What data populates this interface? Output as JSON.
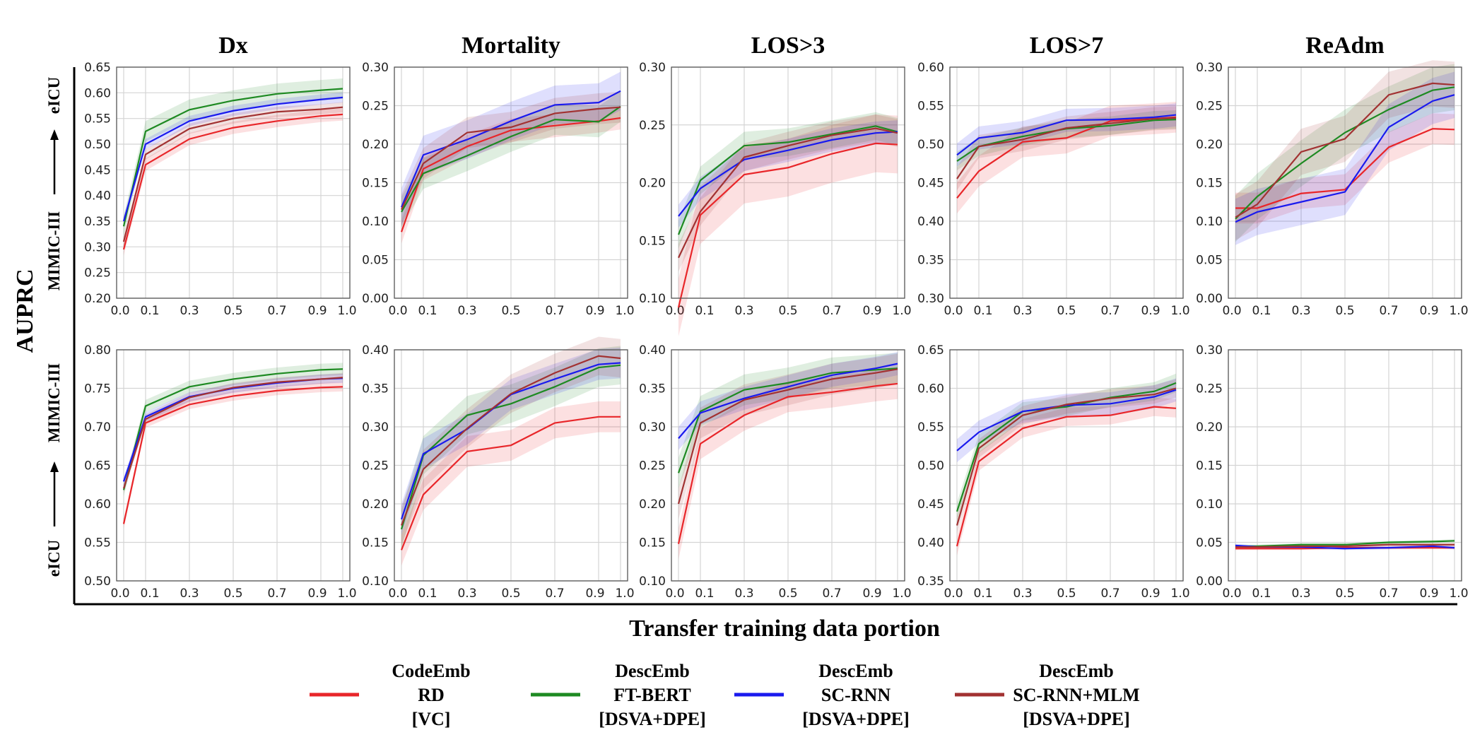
{
  "figure": {
    "y_axis_label": "AUPRC",
    "x_axis_label": "Transfer training data portion",
    "row_labels": [
      {
        "from": "MIMIC-III",
        "to": "eICU"
      },
      {
        "from": "eICU",
        "to": "MIMIC-III"
      }
    ],
    "colors": {
      "red": "#e8262a",
      "green": "#1e8a22",
      "blue": "#1a1aee",
      "brown": "#a23232"
    }
  },
  "legend": [
    {
      "key": "red",
      "lines": [
        "CodeEmb",
        "RD",
        "[VC]"
      ]
    },
    {
      "key": "green",
      "lines": [
        "DescEmb",
        "FT-BERT",
        "[DSVA+DPE]"
      ]
    },
    {
      "key": "blue",
      "lines": [
        "DescEmb",
        "SC-RNN",
        "[DSVA+DPE]"
      ]
    },
    {
      "key": "brown",
      "lines": [
        "DescEmb",
        "SC-RNN+MLM",
        "[DSVA+DPE]"
      ]
    }
  ],
  "chart_data": [
    {
      "type": "line",
      "title": "Dx",
      "row": "MIMIC-III → eICU",
      "x": [
        0.0,
        0.1,
        0.3,
        0.5,
        0.7,
        0.9,
        1.0
      ],
      "xticks": [
        "0.0",
        "0.1",
        "0.3",
        "0.5",
        "0.7",
        "0.9",
        "1.0"
      ],
      "ylim": [
        0.2,
        0.65
      ],
      "yticks": [
        "0.20",
        "0.25",
        "0.30",
        "0.35",
        "0.40",
        "0.45",
        "0.50",
        "0.55",
        "0.60",
        "0.65"
      ],
      "series": [
        {
          "name": "CodeEmb RD [VC]",
          "color": "red",
          "values": [
            0.295,
            0.46,
            0.51,
            0.532,
            0.545,
            0.555,
            0.558
          ],
          "band": 0.012
        },
        {
          "name": "DescEmb FT-BERT [DSVA+DPE]",
          "color": "green",
          "values": [
            0.34,
            0.525,
            0.567,
            0.585,
            0.598,
            0.605,
            0.608
          ],
          "band": 0.02
        },
        {
          "name": "DescEmb SC-RNN [DSVA+DPE]",
          "color": "blue",
          "values": [
            0.35,
            0.5,
            0.545,
            0.565,
            0.578,
            0.587,
            0.591
          ],
          "band": 0.01
        },
        {
          "name": "DescEmb SC-RNN+MLM [DSVA+DPE]",
          "color": "brown",
          "values": [
            0.31,
            0.48,
            0.53,
            0.55,
            0.563,
            0.568,
            0.572
          ],
          "band": 0.01
        }
      ]
    },
    {
      "type": "line",
      "title": "Mortality",
      "row": "MIMIC-III → eICU",
      "x": [
        0.0,
        0.1,
        0.3,
        0.5,
        0.7,
        0.9,
        1.0
      ],
      "xticks": [
        "0.0",
        "0.1",
        "0.3",
        "0.5",
        "0.7",
        "0.9",
        "1.0"
      ],
      "ylim": [
        0.0,
        0.3
      ],
      "yticks": [
        "0.00",
        "0.05",
        "0.10",
        "0.15",
        "0.20",
        "0.25",
        "0.30"
      ],
      "series": [
        {
          "name": "CodeEmb RD [VC]",
          "color": "red",
          "values": [
            0.086,
            0.168,
            0.197,
            0.218,
            0.224,
            0.23,
            0.234
          ],
          "band": 0.015
        },
        {
          "name": "DescEmb FT-BERT [DSVA+DPE]",
          "color": "green",
          "values": [
            0.112,
            0.162,
            0.185,
            0.21,
            0.232,
            0.229,
            0.249
          ],
          "band": 0.02
        },
        {
          "name": "DescEmb SC-RNN [DSVA+DPE]",
          "color": "blue",
          "values": [
            0.118,
            0.186,
            0.206,
            0.23,
            0.251,
            0.254,
            0.269
          ],
          "band": 0.025
        },
        {
          "name": "DescEmb SC-RNN+MLM [DSVA+DPE]",
          "color": "brown",
          "values": [
            0.115,
            0.175,
            0.215,
            0.222,
            0.24,
            0.246,
            0.248
          ],
          "band": 0.02
        }
      ]
    },
    {
      "type": "line",
      "title": "LOS>3",
      "row": "MIMIC-III → eICU",
      "x": [
        0.0,
        0.1,
        0.3,
        0.5,
        0.7,
        0.9,
        1.0
      ],
      "xticks": [
        "0.0",
        "0.1",
        "0.3",
        "0.5",
        "0.7",
        "0.9",
        "1.0"
      ],
      "ylim": [
        0.1,
        0.3
      ],
      "yticks": [
        "0.10",
        "0.15",
        "0.20",
        "0.25",
        "0.30"
      ],
      "series": [
        {
          "name": "CodeEmb RD [VC]",
          "color": "red",
          "values": [
            0.092,
            0.172,
            0.207,
            0.213,
            0.225,
            0.234,
            0.233
          ],
          "band": 0.025
        },
        {
          "name": "DescEmb FT-BERT [DSVA+DPE]",
          "color": "green",
          "values": [
            0.155,
            0.202,
            0.232,
            0.235,
            0.242,
            0.249,
            0.244
          ],
          "band": 0.012
        },
        {
          "name": "DescEmb SC-RNN [DSVA+DPE]",
          "color": "blue",
          "values": [
            0.171,
            0.195,
            0.22,
            0.228,
            0.237,
            0.243,
            0.244
          ],
          "band": 0.01
        },
        {
          "name": "DescEmb SC-RNN+MLM [DSVA+DPE]",
          "color": "brown",
          "values": [
            0.135,
            0.175,
            0.222,
            0.232,
            0.241,
            0.247,
            0.243
          ],
          "band": 0.012
        }
      ]
    },
    {
      "type": "line",
      "title": "LOS>7",
      "row": "MIMIC-III → eICU",
      "x": [
        0.0,
        0.1,
        0.3,
        0.5,
        0.7,
        0.9,
        1.0
      ],
      "xticks": [
        "0.0",
        "0.1",
        "0.3",
        "0.5",
        "0.7",
        "0.9",
        "1.0"
      ],
      "ylim": [
        0.3,
        0.6
      ],
      "yticks": [
        "0.30",
        "0.35",
        "0.40",
        "0.45",
        "0.50",
        "0.55",
        "0.60"
      ],
      "series": [
        {
          "name": "CodeEmb RD [VC]",
          "color": "red",
          "values": [
            0.43,
            0.465,
            0.503,
            0.508,
            0.53,
            0.533,
            0.535
          ],
          "band": 0.02
        },
        {
          "name": "DescEmb FT-BERT [DSVA+DPE]",
          "color": "green",
          "values": [
            0.478,
            0.497,
            0.51,
            0.52,
            0.524,
            0.531,
            0.532
          ],
          "band": 0.012
        },
        {
          "name": "DescEmb SC-RNN [DSVA+DPE]",
          "color": "blue",
          "values": [
            0.486,
            0.508,
            0.515,
            0.531,
            0.532,
            0.535,
            0.538
          ],
          "band": 0.015
        },
        {
          "name": "DescEmb SC-RNN+MLM [DSVA+DPE]",
          "color": "brown",
          "values": [
            0.455,
            0.497,
            0.506,
            0.521,
            0.527,
            0.533,
            0.534
          ],
          "band": 0.015
        }
      ]
    },
    {
      "type": "line",
      "title": "ReAdm",
      "row": "MIMIC-III → eICU",
      "x": [
        0.0,
        0.1,
        0.3,
        0.5,
        0.7,
        0.9,
        1.0
      ],
      "xticks": [
        "0.0",
        "0.1",
        "0.3",
        "0.5",
        "0.7",
        "0.9",
        "1.0"
      ],
      "ylim": [
        0.0,
        0.3
      ],
      "yticks": [
        "0.00",
        "0.05",
        "0.10",
        "0.15",
        "0.20",
        "0.25",
        "0.30"
      ],
      "series": [
        {
          "name": "CodeEmb RD [VC]",
          "color": "red",
          "values": [
            0.117,
            0.117,
            0.136,
            0.141,
            0.196,
            0.22,
            0.219
          ],
          "band": 0.02
        },
        {
          "name": "DescEmb FT-BERT [DSVA+DPE]",
          "color": "green",
          "values": [
            0.103,
            0.132,
            0.175,
            0.215,
            0.245,
            0.27,
            0.274
          ],
          "band": 0.03
        },
        {
          "name": "DescEmb SC-RNN [DSVA+DPE]",
          "color": "blue",
          "values": [
            0.099,
            0.112,
            0.125,
            0.138,
            0.222,
            0.256,
            0.264
          ],
          "band": 0.03
        },
        {
          "name": "DescEmb SC-RNN+MLM [DSVA+DPE]",
          "color": "brown",
          "values": [
            0.105,
            0.122,
            0.19,
            0.207,
            0.264,
            0.279,
            0.277
          ],
          "band": 0.03
        }
      ]
    },
    {
      "type": "line",
      "title": "",
      "row": "eICU → MIMIC-III",
      "x": [
        0.0,
        0.1,
        0.3,
        0.5,
        0.7,
        0.9,
        1.0
      ],
      "xticks": [
        "0.0",
        "0.1",
        "0.3",
        "0.5",
        "0.7",
        "0.9",
        "1.0"
      ],
      "ylim": [
        0.5,
        0.8
      ],
      "yticks": [
        "0.50",
        "0.55",
        "0.60",
        "0.65",
        "0.70",
        "0.75",
        "0.80"
      ],
      "series": [
        {
          "name": "CodeEmb RD [VC]",
          "color": "red",
          "values": [
            0.574,
            0.705,
            0.729,
            0.74,
            0.747,
            0.751,
            0.752
          ],
          "band": 0.006
        },
        {
          "name": "DescEmb FT-BERT [DSVA+DPE]",
          "color": "green",
          "values": [
            0.618,
            0.727,
            0.752,
            0.762,
            0.769,
            0.774,
            0.775
          ],
          "band": 0.008
        },
        {
          "name": "DescEmb SC-RNN [DSVA+DPE]",
          "color": "blue",
          "values": [
            0.629,
            0.713,
            0.739,
            0.75,
            0.757,
            0.762,
            0.763
          ],
          "band": 0.006
        },
        {
          "name": "DescEmb SC-RNN+MLM [DSVA+DPE]",
          "color": "brown",
          "values": [
            0.62,
            0.71,
            0.738,
            0.751,
            0.758,
            0.762,
            0.764
          ],
          "band": 0.006
        }
      ]
    },
    {
      "type": "line",
      "title": "",
      "row": "eICU → MIMIC-III",
      "x": [
        0.0,
        0.1,
        0.3,
        0.5,
        0.7,
        0.9,
        1.0
      ],
      "xticks": [
        "0.0",
        "0.1",
        "0.3",
        "0.5",
        "0.7",
        "0.9",
        "1.0"
      ],
      "ylim": [
        0.1,
        0.4
      ],
      "yticks": [
        "0.10",
        "0.15",
        "0.20",
        "0.25",
        "0.30",
        "0.35",
        "0.40"
      ],
      "series": [
        {
          "name": "CodeEmb RD [VC]",
          "color": "red",
          "values": [
            0.14,
            0.212,
            0.268,
            0.276,
            0.305,
            0.313,
            0.313
          ],
          "band": 0.02
        },
        {
          "name": "DescEmb FT-BERT [DSVA+DPE]",
          "color": "green",
          "values": [
            0.167,
            0.263,
            0.315,
            0.33,
            0.352,
            0.377,
            0.38
          ],
          "band": 0.025
        },
        {
          "name": "DescEmb SC-RNN [DSVA+DPE]",
          "color": "blue",
          "values": [
            0.18,
            0.265,
            0.297,
            0.342,
            0.362,
            0.381,
            0.383
          ],
          "band": 0.02
        },
        {
          "name": "DescEmb SC-RNN+MLM [DSVA+DPE]",
          "color": "brown",
          "values": [
            0.172,
            0.245,
            0.298,
            0.343,
            0.37,
            0.392,
            0.389
          ],
          "band": 0.025
        }
      ]
    },
    {
      "type": "line",
      "title": "",
      "row": "eICU → MIMIC-III",
      "x": [
        0.0,
        0.1,
        0.3,
        0.5,
        0.7,
        0.9,
        1.0
      ],
      "xticks": [
        "0.0",
        "0.1",
        "0.3",
        "0.5",
        "0.7",
        "0.9",
        "1.0"
      ],
      "ylim": [
        0.1,
        0.4
      ],
      "yticks": [
        "0.10",
        "0.15",
        "0.20",
        "0.25",
        "0.30",
        "0.35",
        "0.40"
      ],
      "series": [
        {
          "name": "CodeEmb RD [VC]",
          "color": "red",
          "values": [
            0.148,
            0.278,
            0.315,
            0.339,
            0.345,
            0.353,
            0.356
          ],
          "band": 0.02
        },
        {
          "name": "DescEmb FT-BERT [DSVA+DPE]",
          "color": "green",
          "values": [
            0.24,
            0.32,
            0.348,
            0.357,
            0.37,
            0.374,
            0.376
          ],
          "band": 0.02
        },
        {
          "name": "DescEmb SC-RNN [DSVA+DPE]",
          "color": "blue",
          "values": [
            0.285,
            0.318,
            0.337,
            0.352,
            0.367,
            0.376,
            0.382
          ],
          "band": 0.015
        },
        {
          "name": "DescEmb SC-RNN+MLM [DSVA+DPE]",
          "color": "brown",
          "values": [
            0.2,
            0.305,
            0.335,
            0.348,
            0.362,
            0.37,
            0.375
          ],
          "band": 0.02
        }
      ]
    },
    {
      "type": "line",
      "title": "",
      "row": "eICU → MIMIC-III",
      "x": [
        0.0,
        0.1,
        0.3,
        0.5,
        0.7,
        0.9,
        1.0
      ],
      "xticks": [
        "0.0",
        "0.1",
        "0.3",
        "0.5",
        "0.7",
        "0.9",
        "1.0"
      ],
      "ylim": [
        0.35,
        0.65
      ],
      "yticks": [
        "0.35",
        "0.40",
        "0.45",
        "0.50",
        "0.55",
        "0.60",
        "0.65"
      ],
      "series": [
        {
          "name": "CodeEmb RD [VC]",
          "color": "red",
          "values": [
            0.395,
            0.505,
            0.548,
            0.563,
            0.565,
            0.576,
            0.574
          ],
          "band": 0.012
        },
        {
          "name": "DescEmb FT-BERT [DSVA+DPE]",
          "color": "green",
          "values": [
            0.44,
            0.528,
            0.57,
            0.576,
            0.588,
            0.596,
            0.607
          ],
          "band": 0.012
        },
        {
          "name": "DescEmb SC-RNN [DSVA+DPE]",
          "color": "blue",
          "values": [
            0.519,
            0.543,
            0.57,
            0.578,
            0.58,
            0.589,
            0.598
          ],
          "band": 0.015
        },
        {
          "name": "DescEmb SC-RNN+MLM [DSVA+DPE]",
          "color": "brown",
          "values": [
            0.422,
            0.522,
            0.565,
            0.579,
            0.587,
            0.592,
            0.6
          ],
          "band": 0.012
        }
      ]
    },
    {
      "type": "line",
      "title": "",
      "row": "eICU → MIMIC-III",
      "x": [
        0.0,
        0.1,
        0.3,
        0.5,
        0.7,
        0.9,
        1.0
      ],
      "xticks": [
        "0.0",
        "0.1",
        "0.3",
        "0.5",
        "0.7",
        "0.9",
        "1.0"
      ],
      "ylim": [
        0.0,
        0.3
      ],
      "yticks": [
        "0.00",
        "0.05",
        "0.10",
        "0.15",
        "0.20",
        "0.25",
        "0.30"
      ],
      "series": [
        {
          "name": "CodeEmb RD [VC]",
          "color": "red",
          "values": [
            0.042,
            0.042,
            0.042,
            0.043,
            0.043,
            0.043,
            0.043
          ],
          "band": 0.002
        },
        {
          "name": "DescEmb FT-BERT [DSVA+DPE]",
          "color": "green",
          "values": [
            0.045,
            0.045,
            0.047,
            0.047,
            0.05,
            0.051,
            0.052
          ],
          "band": 0.002
        },
        {
          "name": "DescEmb SC-RNN [DSVA+DPE]",
          "color": "blue",
          "values": [
            0.046,
            0.044,
            0.044,
            0.042,
            0.043,
            0.045,
            0.043
          ],
          "band": 0.002
        },
        {
          "name": "DescEmb SC-RNN+MLM [DSVA+DPE]",
          "color": "brown",
          "values": [
            0.044,
            0.044,
            0.045,
            0.045,
            0.047,
            0.047,
            0.047
          ],
          "band": 0.002
        }
      ]
    }
  ]
}
